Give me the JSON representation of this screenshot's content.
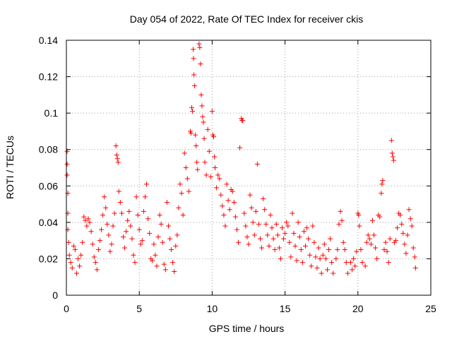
{
  "chart_data": {
    "type": "scatter",
    "title": "Day 054 of 2022, Rate Of TEC Index for receiver ckis",
    "xlabel": "GPS time / hours",
    "ylabel": "ROTI / TECUs",
    "xlim": [
      0,
      25
    ],
    "ylim": [
      0,
      0.14
    ],
    "x_ticks": [
      "0",
      "5",
      "10",
      "15",
      "20",
      "25"
    ],
    "y_ticks": [
      "0",
      "0.02",
      "0.04",
      "0.06",
      "0.08",
      "0.1",
      "0.12",
      "0.14"
    ],
    "x_tick_values": [
      0,
      5,
      10,
      15,
      20,
      25
    ],
    "y_tick_values": [
      0,
      0.02,
      0.04,
      0.06,
      0.08,
      0.1,
      0.12,
      0.14
    ],
    "grid": true,
    "marker": "plus",
    "color": "#ff0000",
    "series": [
      {
        "points": [
          [
            0.05,
            0.079
          ],
          [
            0.05,
            0.072
          ],
          [
            0.05,
            0.066
          ],
          [
            0.1,
            0.056
          ],
          [
            0.1,
            0.045
          ],
          [
            0.1,
            0.036
          ],
          [
            0.15,
            0.029
          ],
          [
            0.2,
            0.022
          ],
          [
            0.3,
            0.018
          ],
          [
            0.4,
            0.015
          ],
          [
            0.5,
            0.027
          ],
          [
            0.6,
            0.025
          ],
          [
            0.7,
            0.012
          ],
          [
            0.8,
            0.02
          ],
          [
            0.9,
            0.016
          ],
          [
            1.0,
            0.022
          ],
          [
            1.1,
            0.029
          ],
          [
            1.2,
            0.043
          ],
          [
            1.3,
            0.041
          ],
          [
            1.4,
            0.038
          ],
          [
            1.5,
            0.042
          ],
          [
            1.6,
            0.04
          ],
          [
            1.7,
            0.035
          ],
          [
            1.8,
            0.028
          ],
          [
            1.9,
            0.021
          ],
          [
            2.0,
            0.018
          ],
          [
            2.1,
            0.014
          ],
          [
            2.2,
            0.025
          ],
          [
            2.3,
            0.03
          ],
          [
            2.4,
            0.036
          ],
          [
            2.5,
            0.044
          ],
          [
            2.6,
            0.054
          ],
          [
            2.7,
            0.048
          ],
          [
            2.8,
            0.039
          ],
          [
            2.9,
            0.033
          ],
          [
            3.0,
            0.024
          ],
          [
            3.1,
            0.028
          ],
          [
            3.2,
            0.038
          ],
          [
            3.3,
            0.045
          ],
          [
            3.4,
            0.082
          ],
          [
            3.45,
            0.077
          ],
          [
            3.5,
            0.075
          ],
          [
            3.55,
            0.073
          ],
          [
            3.6,
            0.057
          ],
          [
            3.7,
            0.051
          ],
          [
            3.8,
            0.045
          ],
          [
            3.9,
            0.032
          ],
          [
            4.0,
            0.026
          ],
          [
            4.1,
            0.035
          ],
          [
            4.2,
            0.041
          ],
          [
            4.3,
            0.046
          ],
          [
            4.4,
            0.038
          ],
          [
            4.5,
            0.031
          ],
          [
            4.6,
            0.022
          ],
          [
            4.7,
            0.018
          ],
          [
            4.8,
            0.054
          ],
          [
            4.9,
            0.044
          ],
          [
            5.0,
            0.036
          ],
          [
            5.1,
            0.028
          ],
          [
            5.2,
            0.03
          ],
          [
            5.3,
            0.046
          ],
          [
            5.4,
            0.054
          ],
          [
            5.5,
            0.061
          ],
          [
            5.6,
            0.042
          ],
          [
            5.7,
            0.034
          ],
          [
            5.8,
            0.02
          ],
          [
            5.9,
            0.019
          ],
          [
            6.0,
            0.028
          ],
          [
            6.1,
            0.022
          ],
          [
            6.2,
            0.016
          ],
          [
            6.3,
            0.032
          ],
          [
            6.4,
            0.044
          ],
          [
            6.5,
            0.039
          ],
          [
            6.6,
            0.029
          ],
          [
            6.7,
            0.017
          ],
          [
            6.8,
            0.014
          ],
          [
            6.9,
            0.051
          ],
          [
            7.0,
            0.038
          ],
          [
            7.1,
            0.031
          ],
          [
            7.2,
            0.025
          ],
          [
            7.3,
            0.018
          ],
          [
            7.4,
            0.013
          ],
          [
            7.5,
            0.027
          ],
          [
            7.6,
            0.033
          ],
          [
            7.7,
            0.048
          ],
          [
            7.8,
            0.061
          ],
          [
            7.9,
            0.056
          ],
          [
            8.0,
            0.044
          ],
          [
            8.1,
            0.078
          ],
          [
            8.2,
            0.07
          ],
          [
            8.3,
            0.064
          ],
          [
            8.4,
            0.057
          ],
          [
            8.5,
            0.09
          ],
          [
            8.55,
            0.089
          ],
          [
            8.6,
            0.103
          ],
          [
            8.65,
            0.101
          ],
          [
            8.7,
            0.135
          ],
          [
            8.72,
            0.13
          ],
          [
            8.75,
            0.121
          ],
          [
            8.8,
            0.115
          ],
          [
            8.85,
            0.088
          ],
          [
            8.9,
            0.082
          ],
          [
            8.95,
            0.073
          ],
          [
            9.0,
            0.069
          ],
          [
            9.1,
            0.138
          ],
          [
            9.15,
            0.136
          ],
          [
            9.2,
            0.127
          ],
          [
            9.25,
            0.11
          ],
          [
            9.3,
            0.104
          ],
          [
            9.35,
            0.098
          ],
          [
            9.4,
            0.095
          ],
          [
            9.45,
            0.086
          ],
          [
            9.5,
            0.073
          ],
          [
            9.6,
            0.066
          ],
          [
            9.7,
            0.091
          ],
          [
            9.8,
            0.079
          ],
          [
            9.9,
            0.065
          ],
          [
            10.0,
            0.101
          ],
          [
            10.05,
            0.088
          ],
          [
            10.1,
            0.087
          ],
          [
            10.15,
            0.076
          ],
          [
            10.2,
            0.07
          ],
          [
            10.3,
            0.059
          ],
          [
            10.4,
            0.066
          ],
          [
            10.5,
            0.064
          ],
          [
            10.6,
            0.055
          ],
          [
            10.7,
            0.049
          ],
          [
            10.8,
            0.044
          ],
          [
            10.9,
            0.038
          ],
          [
            11.0,
            0.061
          ],
          [
            11.1,
            0.052
          ],
          [
            11.2,
            0.047
          ],
          [
            11.3,
            0.058
          ],
          [
            11.4,
            0.057
          ],
          [
            11.5,
            0.051
          ],
          [
            11.6,
            0.043
          ],
          [
            11.7,
            0.036
          ],
          [
            11.8,
            0.029
          ],
          [
            11.9,
            0.081
          ],
          [
            12.0,
            0.097
          ],
          [
            12.05,
            0.096
          ],
          [
            12.1,
            0.096
          ],
          [
            12.2,
            0.045
          ],
          [
            12.3,
            0.038
          ],
          [
            12.4,
            0.032
          ],
          [
            12.5,
            0.028
          ],
          [
            12.6,
            0.055
          ],
          [
            12.7,
            0.048
          ],
          [
            12.8,
            0.04
          ],
          [
            12.9,
            0.033
          ],
          [
            13.0,
            0.046
          ],
          [
            13.1,
            0.072
          ],
          [
            13.2,
            0.039
          ],
          [
            13.3,
            0.031
          ],
          [
            13.4,
            0.026
          ],
          [
            13.5,
            0.053
          ],
          [
            13.6,
            0.047
          ],
          [
            13.7,
            0.039
          ],
          [
            13.8,
            0.033
          ],
          [
            13.9,
            0.027
          ],
          [
            14.0,
            0.044
          ],
          [
            14.1,
            0.037
          ],
          [
            14.2,
            0.031
          ],
          [
            14.3,
            0.025
          ],
          [
            14.4,
            0.039
          ],
          [
            14.5,
            0.033
          ],
          [
            14.6,
            0.026
          ],
          [
            14.7,
            0.02
          ],
          [
            14.8,
            0.037
          ],
          [
            14.9,
            0.031
          ],
          [
            15.0,
            0.034
          ],
          [
            15.1,
            0.04
          ],
          [
            15.2,
            0.038
          ],
          [
            15.3,
            0.029
          ],
          [
            15.4,
            0.021
          ],
          [
            15.5,
            0.045
          ],
          [
            15.6,
            0.034
          ],
          [
            15.7,
            0.027
          ],
          [
            15.8,
            0.019
          ],
          [
            15.9,
            0.04
          ],
          [
            16.0,
            0.032
          ],
          [
            16.1,
            0.025
          ],
          [
            16.2,
            0.018
          ],
          [
            16.3,
            0.035
          ],
          [
            16.4,
            0.027
          ],
          [
            16.5,
            0.037
          ],
          [
            16.6,
            0.031
          ],
          [
            16.7,
            0.022
          ],
          [
            16.8,
            0.016
          ],
          [
            16.9,
            0.038
          ],
          [
            17.0,
            0.029
          ],
          [
            17.1,
            0.021
          ],
          [
            17.2,
            0.015
          ],
          [
            17.3,
            0.026
          ],
          [
            17.4,
            0.02
          ],
          [
            17.5,
            0.012
          ],
          [
            17.6,
            0.022
          ],
          [
            17.7,
            0.028
          ],
          [
            17.8,
            0.02
          ],
          [
            17.9,
            0.014
          ],
          [
            18.0,
            0.025
          ],
          [
            18.1,
            0.031
          ],
          [
            18.2,
            0.018
          ],
          [
            18.3,
            0.012
          ],
          [
            18.5,
            0.02
          ],
          [
            18.6,
            0.025
          ],
          [
            18.7,
            0.039
          ],
          [
            18.8,
            0.046
          ],
          [
            18.9,
            0.041
          ],
          [
            19.0,
            0.029
          ],
          [
            19.1,
            0.025
          ],
          [
            19.2,
            0.018
          ],
          [
            19.3,
            0.012
          ],
          [
            19.5,
            0.018
          ],
          [
            19.6,
            0.014
          ],
          [
            19.7,
            0.02
          ],
          [
            19.8,
            0.016
          ],
          [
            19.9,
            0.024
          ],
          [
            20.0,
            0.045
          ],
          [
            20.05,
            0.044
          ],
          [
            20.1,
            0.038
          ],
          [
            20.2,
            0.025
          ],
          [
            20.3,
            0.018
          ],
          [
            20.5,
            0.016
          ],
          [
            20.6,
            0.029
          ],
          [
            20.7,
            0.033
          ],
          [
            20.8,
            0.031
          ],
          [
            20.9,
            0.028
          ],
          [
            21.0,
            0.041
          ],
          [
            21.1,
            0.033
          ],
          [
            21.2,
            0.026
          ],
          [
            21.3,
            0.02
          ],
          [
            21.4,
            0.044
          ],
          [
            21.5,
            0.043
          ],
          [
            21.6,
            0.056
          ],
          [
            21.65,
            0.061
          ],
          [
            21.7,
            0.063
          ],
          [
            21.8,
            0.025
          ],
          [
            21.9,
            0.029
          ],
          [
            22.0,
            0.024
          ],
          [
            22.1,
            0.018
          ],
          [
            22.2,
            0.031
          ],
          [
            22.3,
            0.085
          ],
          [
            22.35,
            0.078
          ],
          [
            22.4,
            0.076
          ],
          [
            22.45,
            0.074
          ],
          [
            22.5,
            0.029
          ],
          [
            22.6,
            0.03
          ],
          [
            22.7,
            0.037
          ],
          [
            22.8,
            0.045
          ],
          [
            22.9,
            0.044
          ],
          [
            23.0,
            0.039
          ],
          [
            23.1,
            0.034
          ],
          [
            23.2,
            0.028
          ],
          [
            23.3,
            0.023
          ],
          [
            23.4,
            0.033
          ],
          [
            23.5,
            0.047
          ],
          [
            23.6,
            0.042
          ],
          [
            23.7,
            0.038
          ],
          [
            23.8,
            0.026
          ],
          [
            23.9,
            0.021
          ],
          [
            23.95,
            0.015
          ]
        ]
      }
    ]
  }
}
